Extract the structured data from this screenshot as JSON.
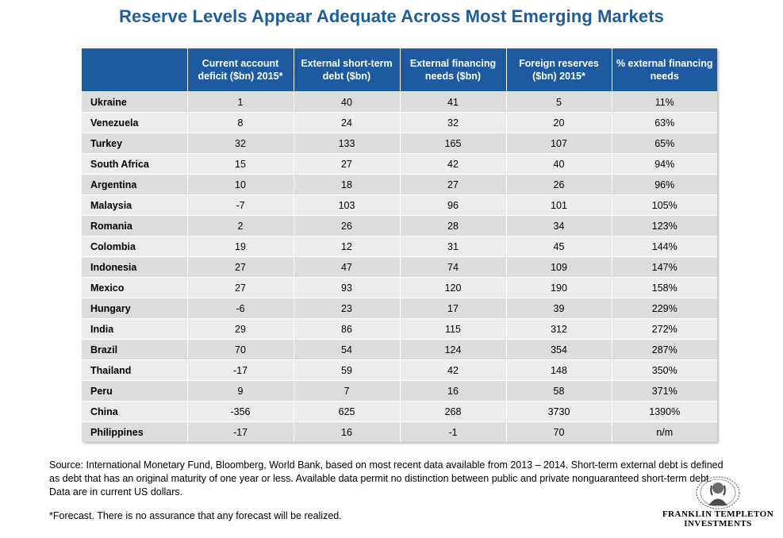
{
  "title": "Reserve Levels Appear Adequate Across Most Emerging Markets",
  "table": {
    "headers": [
      "",
      "Current account deficit ($bn) 2015*",
      "External short-term debt ($bn)",
      "External financing needs ($bn)",
      "Foreign reserves ($bn) 2015*",
      "% external financing needs"
    ],
    "rows": [
      {
        "country": "Ukraine",
        "cad": "1",
        "std": "40",
        "efn": "41",
        "fr": "5",
        "pct": "11%"
      },
      {
        "country": "Venezuela",
        "cad": "8",
        "std": "24",
        "efn": "32",
        "fr": "20",
        "pct": "63%"
      },
      {
        "country": "Turkey",
        "cad": "32",
        "std": "133",
        "efn": "165",
        "fr": "107",
        "pct": "65%"
      },
      {
        "country": "South Africa",
        "cad": "15",
        "std": "27",
        "efn": "42",
        "fr": "40",
        "pct": "94%"
      },
      {
        "country": "Argentina",
        "cad": "10",
        "std": "18",
        "efn": "27",
        "fr": "26",
        "pct": "96%"
      },
      {
        "country": "Malaysia",
        "cad": "-7",
        "std": "103",
        "efn": "96",
        "fr": "101",
        "pct": "105%"
      },
      {
        "country": "Romania",
        "cad": "2",
        "std": "26",
        "efn": "28",
        "fr": "34",
        "pct": "123%"
      },
      {
        "country": "Colombia",
        "cad": "19",
        "std": "12",
        "efn": "31",
        "fr": "45",
        "pct": "144%"
      },
      {
        "country": "Indonesia",
        "cad": "27",
        "std": "47",
        "efn": "74",
        "fr": "109",
        "pct": "147%"
      },
      {
        "country": "Mexico",
        "cad": "27",
        "std": "93",
        "efn": "120",
        "fr": "190",
        "pct": "158%"
      },
      {
        "country": "Hungary",
        "cad": "-6",
        "std": "23",
        "efn": "17",
        "fr": "39",
        "pct": "229%"
      },
      {
        "country": "India",
        "cad": "29",
        "std": "86",
        "efn": "115",
        "fr": "312",
        "pct": "272%"
      },
      {
        "country": "Brazil",
        "cad": "70",
        "std": "54",
        "efn": "124",
        "fr": "354",
        "pct": "287%"
      },
      {
        "country": "Thailand",
        "cad": "-17",
        "std": "59",
        "efn": "42",
        "fr": "148",
        "pct": "350%"
      },
      {
        "country": "Peru",
        "cad": "9",
        "std": "7",
        "efn": "16",
        "fr": "58",
        "pct": "371%"
      },
      {
        "country": "China",
        "cad": "-356",
        "std": "625",
        "efn": "268",
        "fr": "3730",
        "pct": "1390%"
      },
      {
        "country": "Philippines",
        "cad": "-17",
        "std": "16",
        "efn": "-1",
        "fr": "70",
        "pct": "n/m"
      }
    ]
  },
  "source": "Source: International Monetary Fund, Bloomberg, World Bank, based on most recent data available from 2013 – 2014.  Short-term external debt is defined as debt that has an original maturity of one year or less. Available data permit no distinction between public and private nonguaranteed short-term debt. Data are in current US dollars.",
  "footnote": "*Forecast. There is no assurance that any forecast will be realized.",
  "logo": {
    "line1": "FRANKLIN TEMPLETON",
    "line2": "INVESTMENTS",
    "icon": "benjamin-franklin-portrait-icon"
  }
}
